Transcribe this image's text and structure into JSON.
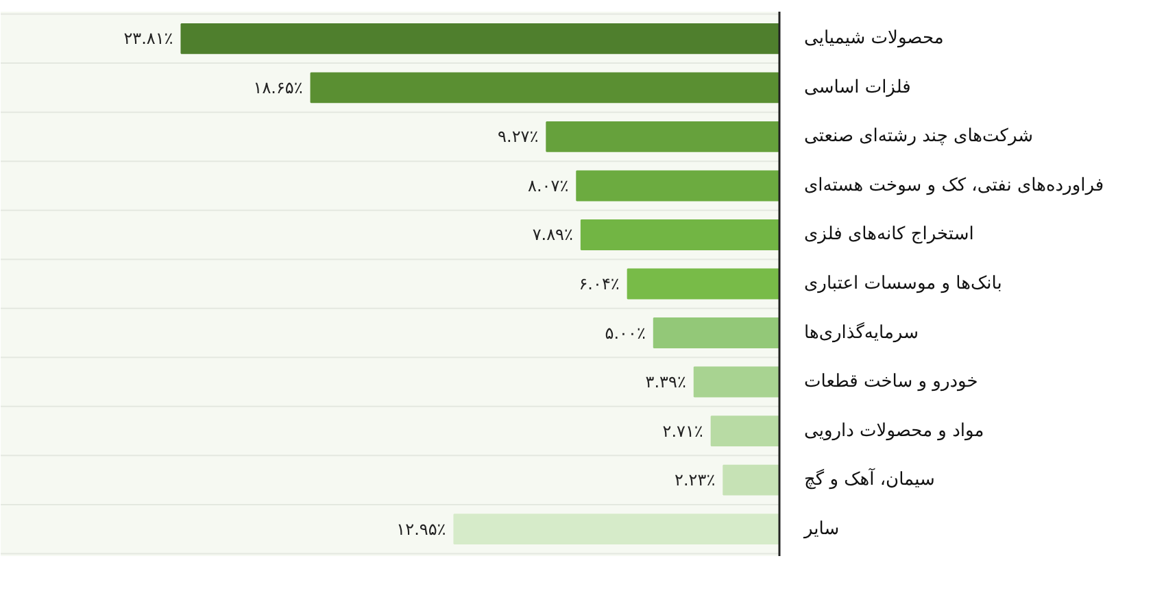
{
  "chart_data": {
    "type": "bar",
    "orientation": "horizontal",
    "categories": [
      "محصولات شیمیایی",
      "فلزات اساسی",
      "شرکت‌های چند رشته‌ای صنعتی",
      "فراورده‌های نفتی، کک و سوخت هسته‌ای",
      "استخراج کانه‌های فلزی",
      "بانک‌ها و موسسات اعتباری",
      "سرمایه‌گذاری‌ها",
      "خودرو و ساخت قطعات",
      "مواد و محصولات دارویی",
      "سیمان، آهک و گچ",
      "سایر"
    ],
    "values": [
      23.81,
      18.65,
      9.27,
      8.07,
      7.89,
      6.04,
      5.0,
      3.39,
      2.71,
      2.23,
      12.95
    ],
    "colors": [
      "#4f7f2d",
      "#5a8f32",
      "#66a13c",
      "#6cab40",
      "#72b544",
      "#78bb48",
      "#93c878",
      "#a8d391",
      "#b8dba4",
      "#c6e2b5",
      "#d6ebc9"
    ],
    "value_labels": [
      "۲۳.۸۱٪",
      "۱۸.۶۵٪",
      "۹.۲۷٪",
      "۸.۰۷٪",
      "۷.۸۹٪",
      "۶.۰۴٪",
      "۵.۰۰٪",
      "۳.۳۹٪",
      "۲.۷۱٪",
      "۲.۲۳٪",
      "۱۲.۹۵٪"
    ],
    "xlim": [
      31,
      0
    ],
    "tick_labels": "y",
    "grid": false
  }
}
